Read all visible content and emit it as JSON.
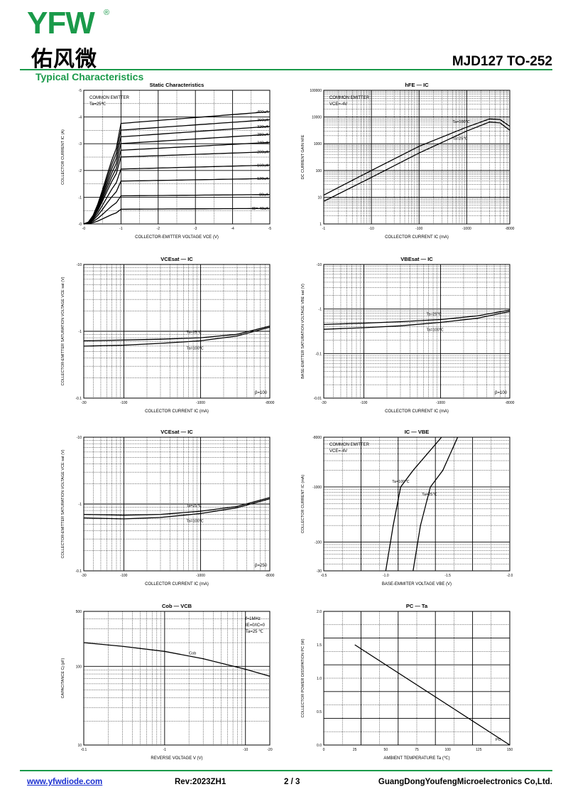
{
  "header": {
    "logo_text": "YFW",
    "logo_cn": "佑风微",
    "registered_mark": "®",
    "part": "MJD127 TO-252",
    "section": "Typical Characteristics"
  },
  "footer": {
    "website": "www.yfwdiode.com",
    "revision": "Rev:2023ZH1",
    "page": "2 / 3",
    "company": "GuangDongYoufengMicroelectronics Co,Ltd."
  },
  "chart_data": [
    {
      "id": "static",
      "type": "line",
      "title": "Static Characteristics",
      "xlabel": "COLLECTOR-EMITTER VOLTAGE  VCE  (V)",
      "ylabel": "COLLECTOR CURRENT  IC  (A)",
      "xscale": "linear",
      "yscale": "linear",
      "xlim": [
        0,
        5
      ],
      "ylim": [
        0,
        5
      ],
      "xticks": [
        "-0",
        "-1",
        "-2",
        "-3",
        "-4",
        "-5"
      ],
      "yticks": [
        "-0",
        "-1",
        "-2",
        "-3",
        "-4",
        "-5"
      ],
      "notes": [
        "COMMON EMITTER",
        "Ta=25℃"
      ],
      "series": [
        {
          "label": "-400uA",
          "sat": 3.75,
          "end": 4.2
        },
        {
          "label": "-360uA",
          "sat": 3.5,
          "end": 3.9
        },
        {
          "label": "-320uA",
          "sat": 3.25,
          "end": 3.65
        },
        {
          "label": "-280uA",
          "sat": 3.0,
          "end": 3.35
        },
        {
          "label": "-240uA",
          "sat": 2.75,
          "end": 3.05
        },
        {
          "label": "-200uA",
          "sat": 2.5,
          "end": 2.7
        },
        {
          "label": "-160uA",
          "sat": 2.05,
          "end": 2.2
        },
        {
          "label": "-120uA",
          "sat": 1.6,
          "end": 1.7
        },
        {
          "label": "-80uA",
          "sat": 1.05,
          "end": 1.1
        },
        {
          "label": "IB=-40uA",
          "sat": 0.55,
          "end": 0.58
        }
      ]
    },
    {
      "id": "hfe",
      "type": "line",
      "title": "hFE  —  IC",
      "xlabel": "COLLECTOR CURRENT  IC  (mA)",
      "ylabel": "DC CURRENT GAIN  hFE",
      "xscale": "log",
      "yscale": "log",
      "xlim": [
        1,
        8000
      ],
      "ylim": [
        1,
        100000
      ],
      "xticks": [
        "-1",
        "-10",
        "-100",
        "-1000",
        "-8000"
      ],
      "yticks": [
        "1",
        "10",
        "100",
        "1000",
        "10000",
        "100000"
      ],
      "notes": [
        "COMMON EMITTER",
        "VCE=-4V"
      ],
      "series": [
        {
          "name": "Ta=100℃",
          "x": [
            1,
            10,
            100,
            1000,
            3000,
            5000,
            8000
          ],
          "y": [
            12,
            100,
            800,
            4200,
            8500,
            8000,
            4500
          ]
        },
        {
          "name": "Ta=25℃",
          "x": [
            1,
            10,
            100,
            1000,
            3000,
            5000,
            8000
          ],
          "y": [
            7,
            55,
            450,
            3000,
            6500,
            6000,
            3200
          ]
        }
      ]
    },
    {
      "id": "vcesat1",
      "type": "line",
      "title": "VCEsat  —  IC",
      "xlabel": "COLLECTOR CURRENT  IC  (mA)",
      "ylabel": "COLLECTOR-EMITTER SATURATION VOLTAGE  VCE sat  (V)",
      "xscale": "log",
      "yscale": "log",
      "xlim": [
        30,
        8000
      ],
      "ylim": [
        0.1,
        10
      ],
      "xticks": [
        "-30",
        "-100",
        "-1000",
        "-8000"
      ],
      "yticks": [
        "-0.1",
        "-1",
        "-10"
      ],
      "notes": [
        "β=100"
      ],
      "series": [
        {
          "name": "Ta=25℃",
          "x": [
            30,
            100,
            300,
            1000,
            3000,
            8000
          ],
          "y": [
            0.72,
            0.74,
            0.76,
            0.8,
            0.9,
            1.2
          ]
        },
        {
          "name": "Ta=100℃",
          "x": [
            30,
            100,
            300,
            1000,
            3000,
            8000
          ],
          "y": [
            0.6,
            0.62,
            0.66,
            0.72,
            0.85,
            1.15
          ]
        }
      ]
    },
    {
      "id": "vbesat",
      "type": "line",
      "title": "VBEsat  —  IC",
      "xlabel": "COLLECTOR CURRENT  IC  (mA)",
      "ylabel": "BASE-EMITTER SATURATION VOLTAGE  VBE sat  (V)",
      "xscale": "log",
      "yscale": "log",
      "xlim": [
        30,
        8000
      ],
      "ylim": [
        0.01,
        10
      ],
      "xticks": [
        "-30",
        "-100",
        "-1000",
        "-8000"
      ],
      "yticks": [
        "-0.01",
        "-0.1",
        "-1",
        "-10"
      ],
      "notes": [
        "β=100"
      ],
      "series": [
        {
          "name": "Ta=25℃",
          "x": [
            30,
            100,
            300,
            1000,
            3000,
            8000
          ],
          "y": [
            0.45,
            0.48,
            0.52,
            0.58,
            0.7,
            0.95
          ]
        },
        {
          "name": "Ta=100℃",
          "x": [
            30,
            100,
            300,
            1000,
            3000,
            8000
          ],
          "y": [
            0.35,
            0.38,
            0.42,
            0.5,
            0.62,
            0.88
          ]
        }
      ]
    },
    {
      "id": "vcesat2",
      "type": "line",
      "title": "VCEsat  —  IC",
      "xlabel": "COLLECTOR CURRENT  IC  (mA)",
      "ylabel": "COLLECTOR-EMITTER SATURATION VOLTAGE  VCE sat  (V)",
      "xscale": "log",
      "yscale": "log",
      "xlim": [
        30,
        8000
      ],
      "ylim": [
        0.1,
        10
      ],
      "xticks": [
        "-30",
        "-100",
        "-1000",
        "-8000"
      ],
      "yticks": [
        "-0.1",
        "-1",
        "-10"
      ],
      "notes": [
        "β=250"
      ],
      "series": [
        {
          "name": "Ta=25℃",
          "x": [
            30,
            100,
            300,
            1000,
            3000,
            8000
          ],
          "y": [
            0.7,
            0.68,
            0.7,
            0.78,
            0.92,
            1.25
          ]
        },
        {
          "name": "Ta=100℃",
          "x": [
            30,
            100,
            300,
            1000,
            3000,
            8000
          ],
          "y": [
            0.62,
            0.6,
            0.63,
            0.72,
            0.88,
            1.2
          ]
        }
      ]
    },
    {
      "id": "icvbe",
      "type": "line",
      "title": "IC  —  VBE",
      "xlabel": "BASE-EMMITER VOLTAGE  VBE  (V)",
      "ylabel": "COLLECTOR CURRENT  IC  (mA)",
      "xscale": "linear",
      "yscale": "log",
      "xlim": [
        0.5,
        2.0
      ],
      "ylim": [
        30,
        8000
      ],
      "xticks": [
        "-0.5",
        "-1.0",
        "-1.5",
        "-2.0"
      ],
      "yticks": [
        "-30",
        "-100",
        "-1000",
        "-8000"
      ],
      "notes": [
        "COMMON EMITTER",
        "VCE=-4V"
      ],
      "series": [
        {
          "name": "Ta=100℃",
          "x": [
            1.0,
            1.06,
            1.12,
            1.22,
            1.45
          ],
          "y": [
            30,
            200,
            1000,
            2000,
            8000
          ]
        },
        {
          "name": "Ta=25℃",
          "x": [
            1.22,
            1.28,
            1.36,
            1.46,
            1.58
          ],
          "y": [
            30,
            200,
            1000,
            2000,
            8000
          ]
        }
      ]
    },
    {
      "id": "cob",
      "type": "line",
      "title": "Cob  —  VCB",
      "xlabel": "REVERSE  VOLTAGE  V  (V)",
      "ylabel": "CAPACITANCE  Cj  (pF)",
      "xscale": "log",
      "yscale": "log",
      "xlim": [
        0.1,
        20
      ],
      "ylim": [
        10,
        500
      ],
      "xticks": [
        "-0.1",
        "-1",
        "-10",
        "-20"
      ],
      "yticks": [
        "10",
        "100",
        "500"
      ],
      "notes": [
        "f=1MHz",
        "IE=0/IC=0",
        "Ta=25 ℃"
      ],
      "series": [
        {
          "name": "Cob",
          "x": [
            0.1,
            0.3,
            1,
            3,
            10,
            20
          ],
          "y": [
            200,
            180,
            155,
            125,
            92,
            75
          ]
        }
      ]
    },
    {
      "id": "pc",
      "type": "line",
      "title": "PC  —  Ta",
      "xlabel": "AMBIENT TEMPERATURE  Ta  (℃)",
      "ylabel": "COLLECTOR POWER DISSIPATION  PC  (W)",
      "xscale": "linear",
      "yscale": "linear",
      "xlim": [
        0,
        150
      ],
      "ylim": [
        0,
        2.0
      ],
      "xticks": [
        "0",
        "25",
        "50",
        "75",
        "100",
        "125",
        "150"
      ],
      "yticks": [
        "0.0",
        "0.5",
        "1.0",
        "1.5",
        "2.0"
      ],
      "notes": [],
      "series": [
        {
          "name": "PC",
          "x": [
            25,
            150
          ],
          "y": [
            1.5,
            0
          ]
        }
      ]
    }
  ]
}
